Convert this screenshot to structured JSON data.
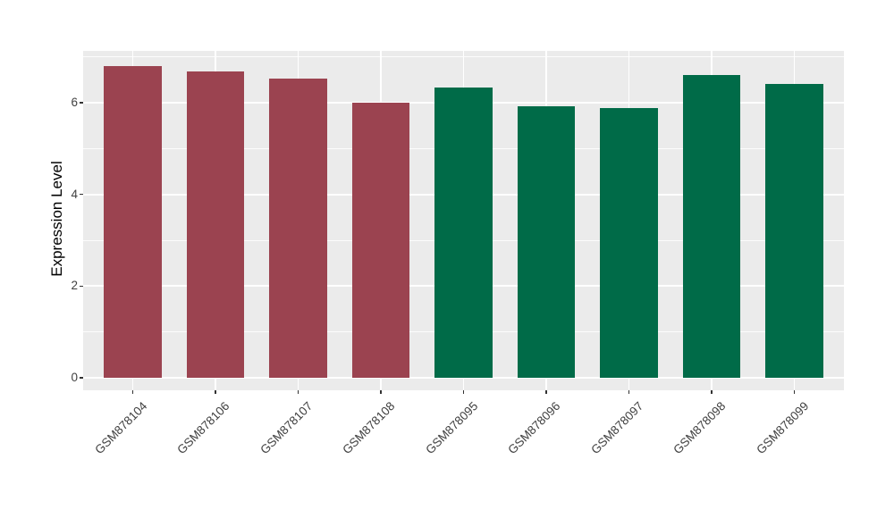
{
  "chart_data": {
    "type": "bar",
    "title": "",
    "xlabel": "",
    "ylabel": "Expression Level",
    "categories": [
      "GSM878104",
      "GSM878106",
      "GSM878107",
      "GSM878108",
      "GSM878095",
      "GSM878096",
      "GSM878097",
      "GSM878098",
      "GSM878099"
    ],
    "values": [
      6.8,
      6.68,
      6.52,
      6.01,
      6.34,
      5.92,
      5.88,
      6.6,
      6.41
    ],
    "bar_group": [
      0,
      0,
      0,
      0,
      1,
      1,
      1,
      1,
      1
    ],
    "group_colors": [
      "#9B4350",
      "#006B48"
    ],
    "yticks": [
      0,
      2,
      4,
      6
    ],
    "yticks_minor": [
      1,
      3,
      5,
      7
    ],
    "ylim": [
      0,
      7.1
    ],
    "grid": true,
    "legend_position": "none",
    "x_label_angle_deg": 45,
    "colors": {
      "panel_bg": "#EBEBEB",
      "grid": "#FFFFFF",
      "tick": "#333333",
      "axis_text": "#404040",
      "axis_title": "#000000"
    }
  }
}
